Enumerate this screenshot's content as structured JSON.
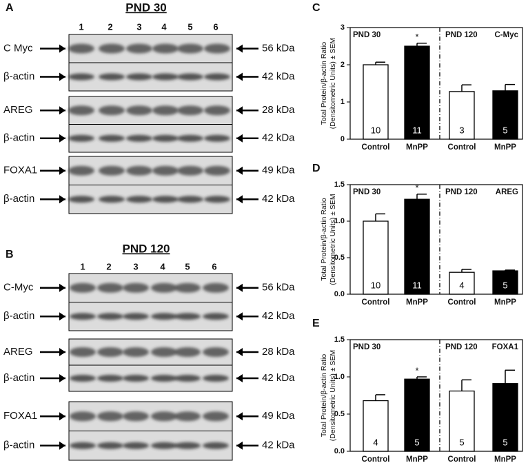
{
  "blots": [
    {
      "panel": "A",
      "title": "PND 30",
      "lanes": [
        1,
        2,
        3,
        4,
        5,
        6
      ],
      "pairs": [
        [
          {
            "label": "C Myc",
            "size": "56 kDa"
          },
          {
            "label": "β-actin",
            "size": "42 kDa"
          }
        ],
        [
          {
            "label": "AREG",
            "size": "28 kDa"
          },
          {
            "label": "β-actin",
            "size": "42 kDa"
          }
        ],
        [
          {
            "label": "FOXA1",
            "size": "49 kDa"
          },
          {
            "label": "β-actin",
            "size": "42 kDa"
          }
        ]
      ]
    },
    {
      "panel": "B",
      "title": "PND 120",
      "lanes": [
        1,
        2,
        3,
        4,
        5,
        6
      ],
      "pairs": [
        [
          {
            "label": "C-Myc",
            "size": "56 kDa"
          },
          {
            "label": "β-actin",
            "size": "42 kDa"
          }
        ],
        [
          {
            "label": "AREG",
            "size": "28 kDa"
          },
          {
            "label": "β-actin",
            "size": "42 kDa"
          }
        ],
        [
          {
            "label": "FOXA1",
            "size": "49 kDa"
          },
          {
            "label": "β-actin",
            "size": "42 kDa"
          }
        ]
      ]
    }
  ],
  "chart_data": [
    {
      "type": "bar",
      "panel": "C",
      "ylabel": [
        "Total Protein/β-actin Ratio",
        "(Densitometric Units) ± SEM"
      ],
      "categories": [
        "Control",
        "MnPP",
        "Control",
        "MnPP"
      ],
      "values": [
        2.0,
        2.5,
        1.28,
        1.3
      ],
      "errors": [
        0.07,
        0.08,
        0.18,
        0.17
      ],
      "colors": [
        "#ffffff",
        "#000000",
        "#ffffff",
        "#000000"
      ],
      "n_labels": [
        10,
        11,
        3,
        5
      ],
      "significance": [
        null,
        "*",
        null,
        null
      ],
      "groups": [
        "PND 30",
        "PND 120"
      ],
      "target": "C-Myc",
      "ylim": [
        0,
        3
      ],
      "yticks": [
        0,
        1,
        2,
        3
      ]
    },
    {
      "type": "bar",
      "panel": "D",
      "ylabel": [
        "Total Protein/β-actin Ratio",
        "(Densitometric Units) ± SEM"
      ],
      "categories": [
        "Control",
        "MnPP",
        "Control",
        "MnPP"
      ],
      "values": [
        1.0,
        1.3,
        0.3,
        0.32
      ],
      "errors": [
        0.1,
        0.07,
        0.04,
        0.01
      ],
      "colors": [
        "#ffffff",
        "#000000",
        "#ffffff",
        "#000000"
      ],
      "n_labels": [
        10,
        11,
        4,
        5
      ],
      "significance": [
        null,
        "*",
        null,
        null
      ],
      "groups": [
        "PND 30",
        "PND 120"
      ],
      "target": "AREG",
      "ylim": [
        0,
        1.5
      ],
      "yticks": [
        {
          "value": 0,
          "label": "0.0"
        },
        0.5,
        {
          "value": 1,
          "label": "1.0"
        },
        1.5
      ]
    },
    {
      "type": "bar",
      "panel": "E",
      "ylabel": [
        "Total Protein/β-actin Ratio",
        "(Densitometric Units) ± SEM"
      ],
      "categories": [
        "Control",
        "MnPP",
        "Control",
        "MnPP"
      ],
      "values": [
        0.68,
        0.97,
        0.81,
        0.91
      ],
      "errors": [
        0.08,
        0.03,
        0.15,
        0.18
      ],
      "colors": [
        "#ffffff",
        "#000000",
        "#ffffff",
        "#000000"
      ],
      "n_labels": [
        4,
        5,
        5,
        5
      ],
      "significance": [
        null,
        "*",
        null,
        null
      ],
      "groups": [
        "PND 30",
        "PND 120"
      ],
      "target": "FOXA1",
      "ylim": [
        0,
        1.5
      ],
      "yticks": [
        {
          "value": 0,
          "label": "0.0"
        },
        0.5,
        {
          "value": 1,
          "label": "1.0"
        },
        1.5
      ]
    }
  ]
}
